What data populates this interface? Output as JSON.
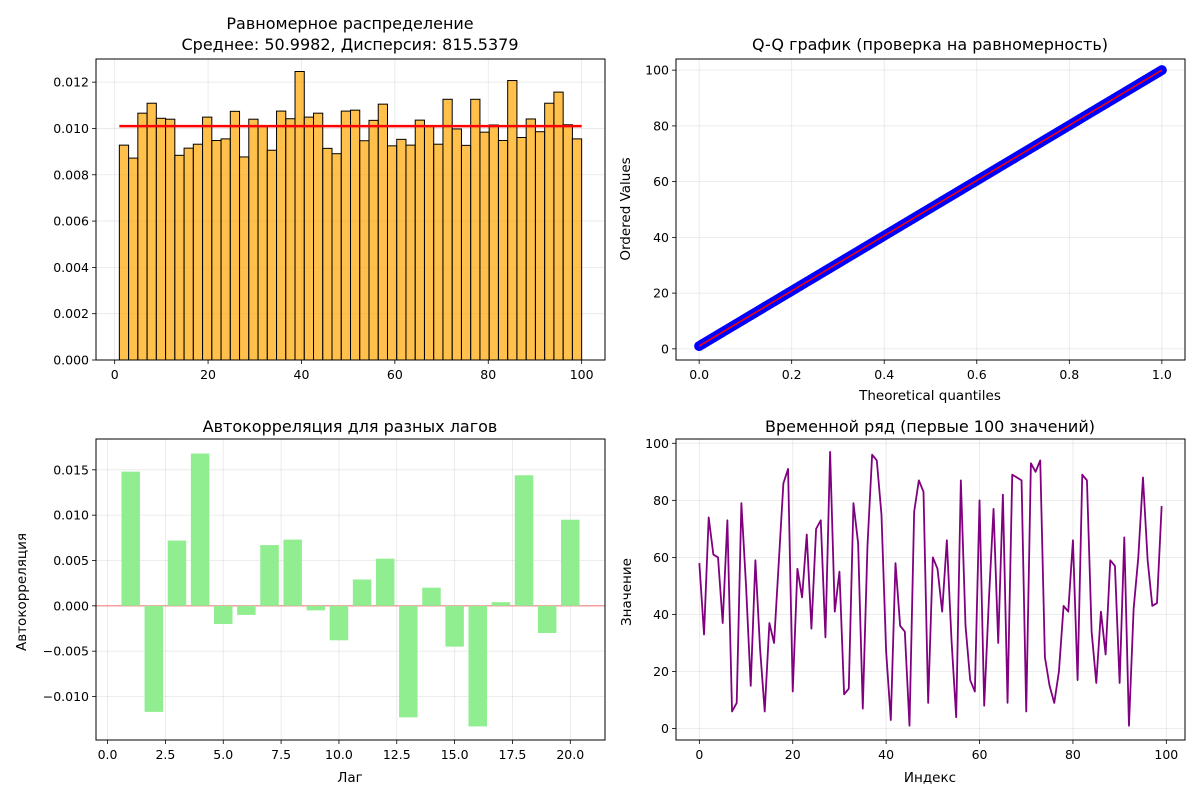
{
  "chart_data": [
    {
      "type": "bar",
      "title": "Равномерное распределение",
      "subtitle": "Среднее: 50.9982, Дисперсия: 815.5379",
      "xlabel": "",
      "ylabel": "",
      "xlim": [
        -4,
        105
      ],
      "ylim": [
        0,
        0.013
      ],
      "xticks": [
        0,
        20,
        40,
        60,
        80,
        100
      ],
      "yticks": [
        0.0,
        0.002,
        0.004,
        0.006,
        0.008,
        0.01,
        0.012
      ],
      "ytick_format": 3,
      "grid": true,
      "bin_range": [
        1,
        100
      ],
      "bar_color": "#FFA500",
      "bar_edge_color": "#000000",
      "reference_line": {
        "y": 0.0101,
        "x": [
          1,
          100
        ],
        "color": "#FF0000"
      },
      "values": [
        0.00928,
        0.00872,
        0.01066,
        0.01109,
        0.01044,
        0.0104,
        0.00884,
        0.00915,
        0.00932,
        0.01049,
        0.00948,
        0.00955,
        0.01074,
        0.00877,
        0.0104,
        0.01008,
        0.00906,
        0.01075,
        0.01042,
        0.01246,
        0.01049,
        0.01066,
        0.00914,
        0.00891,
        0.01075,
        0.01079,
        0.00947,
        0.01035,
        0.01105,
        0.00925,
        0.00953,
        0.00928,
        0.01036,
        0.01011,
        0.00932,
        0.01126,
        0.00998,
        0.00927,
        0.01126,
        0.00984,
        0.01015,
        0.00948,
        0.01207,
        0.00961,
        0.01041,
        0.00986,
        0.01109,
        0.01157,
        0.01016,
        0.00955
      ]
    },
    {
      "type": "scatter",
      "title": "Q-Q график (проверка на равномерность)",
      "xlabel": "Theoretical quantiles",
      "ylabel": "Ordered Values",
      "xlim": [
        -0.05,
        1.05
      ],
      "ylim": [
        -4,
        104
      ],
      "xticks": [
        0.0,
        0.2,
        0.4,
        0.6,
        0.8,
        1.0
      ],
      "yticks": [
        0,
        20,
        40,
        60,
        80,
        100
      ],
      "xtick_format": 1,
      "grid": true,
      "marker_color": "#0000FF",
      "points": [
        [
          0,
          1
        ],
        [
          1,
          100
        ]
      ],
      "fit_line": {
        "x": [
          0,
          1
        ],
        "y": [
          1,
          100
        ],
        "color": "#FF0000"
      }
    },
    {
      "type": "bar",
      "title": "Автокорреляция для разных лагов",
      "xlabel": "Лаг",
      "ylabel": "Автокорреляция",
      "xlim": [
        -0.5,
        21.5
      ],
      "ylim": [
        -0.0148,
        0.0184
      ],
      "xticks": [
        0.0,
        2.5,
        5.0,
        7.5,
        10.0,
        12.5,
        15.0,
        17.5,
        20.0
      ],
      "yticks": [
        -0.01,
        -0.005,
        0.0,
        0.005,
        0.01,
        0.015
      ],
      "xtick_format": 1,
      "ytick_format": 3,
      "grid": true,
      "bar_color": "#90EE90",
      "zero_line_color": "#FF6666",
      "categories": [
        1,
        2,
        3,
        4,
        5,
        6,
        7,
        8,
        9,
        10,
        11,
        12,
        13,
        14,
        15,
        16,
        17,
        18,
        19,
        20
      ],
      "values": [
        0.0148,
        -0.0117,
        0.0072,
        0.0168,
        -0.002,
        -0.001,
        0.0067,
        0.0073,
        -0.0005,
        -0.0038,
        0.0029,
        0.0052,
        -0.0123,
        0.002,
        -0.0045,
        -0.0133,
        0.0004,
        0.0144,
        -0.003,
        0.0095
      ]
    },
    {
      "type": "line",
      "title": "Временной ряд (первые 100 значений)",
      "xlabel": "Индекс",
      "ylabel": "Значение",
      "xlim": [
        -5,
        104
      ],
      "ylim": [
        -4,
        101.5
      ],
      "xticks": [
        0,
        20,
        40,
        60,
        80,
        100
      ],
      "yticks": [
        0,
        20,
        40,
        60,
        80,
        100
      ],
      "grid": true,
      "line_color": "#800080",
      "x_start": 0,
      "values": [
        58,
        33,
        74,
        61,
        60,
        37,
        73,
        6,
        9,
        79,
        50,
        15,
        59,
        28,
        6,
        37,
        30,
        58,
        86,
        91,
        13,
        56,
        46,
        68,
        35,
        70,
        73,
        32,
        97,
        41,
        55,
        12,
        14,
        79,
        65,
        7,
        64,
        96,
        94,
        75,
        27,
        3,
        58,
        36,
        34,
        1,
        76,
        87,
        83,
        9,
        60,
        56,
        41,
        66,
        31,
        4,
        87,
        36,
        17,
        13,
        80,
        8,
        45,
        77,
        30,
        82,
        9,
        89,
        88,
        87,
        6,
        93,
        90,
        94,
        25,
        15,
        9,
        20,
        43,
        41,
        66,
        17,
        89,
        87,
        34,
        16,
        41,
        26,
        59,
        57,
        16,
        67,
        1,
        42,
        60,
        88,
        59,
        43,
        44,
        78
      ]
    }
  ]
}
